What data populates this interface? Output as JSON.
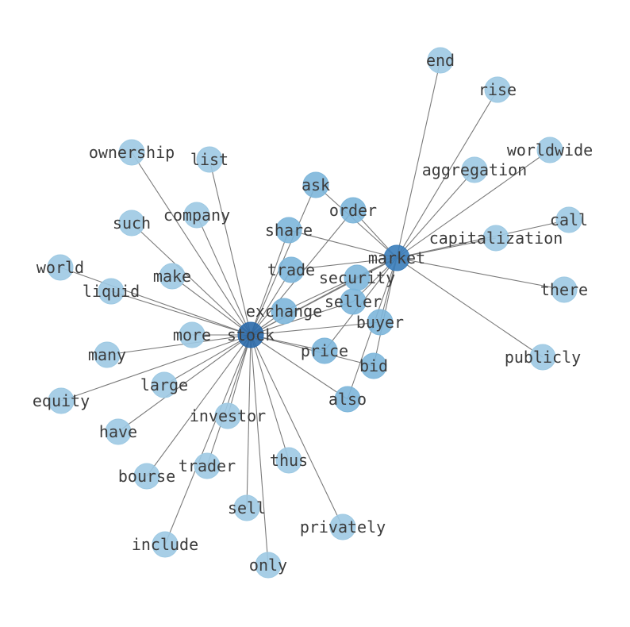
{
  "graph": {
    "hubs": [
      "stock",
      "market"
    ],
    "shared_nodes": [
      "ask",
      "order",
      "share",
      "trade",
      "security",
      "exchange",
      "seller",
      "buyer",
      "price",
      "bid",
      "also"
    ],
    "stock_only_nodes": [
      "ownership",
      "list",
      "company",
      "such",
      "world",
      "liquid",
      "make",
      "more",
      "many",
      "equity",
      "large",
      "have",
      "investor",
      "bourse",
      "trader",
      "include",
      "sell",
      "only",
      "thus",
      "privately"
    ],
    "market_only_nodes": [
      "end",
      "rise",
      "worldwide",
      "aggregation",
      "call",
      "capitalization",
      "there",
      "publicly"
    ],
    "colors": {
      "hub_stock": "#2b6aaa",
      "hub_market": "#3a7dba",
      "shared": "#7db6da",
      "leaf": "#9dc9e3",
      "edge": "#7a7a7a",
      "label": "#3c3c3c"
    }
  }
}
